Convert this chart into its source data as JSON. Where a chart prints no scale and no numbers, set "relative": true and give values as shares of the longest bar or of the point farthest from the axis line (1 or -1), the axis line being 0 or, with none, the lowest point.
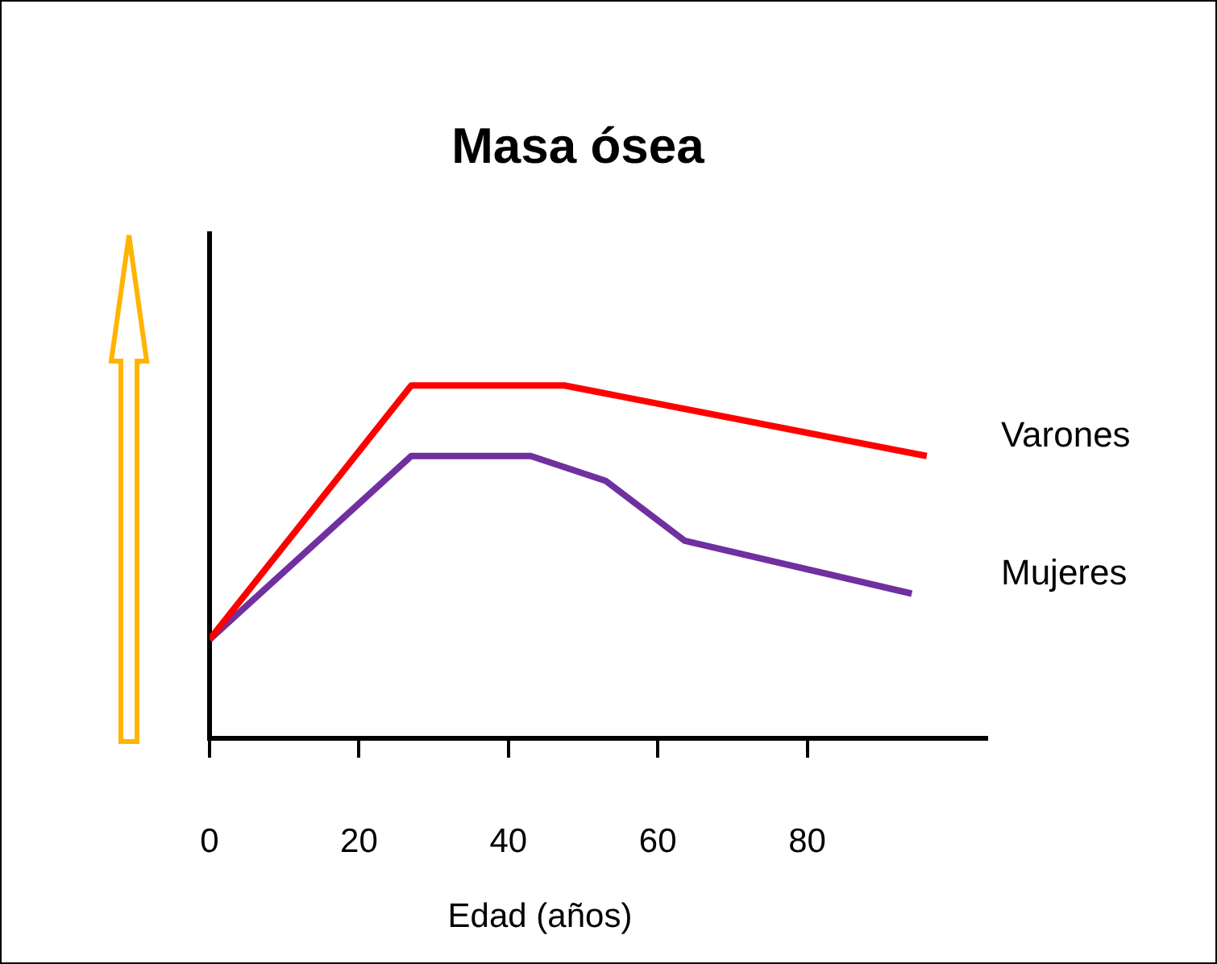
{
  "chart_data": {
    "type": "line",
    "title": "Masa ósea",
    "xlabel": "Edad (años)",
    "relative": true,
    "xlim": [
      0,
      104
    ],
    "xticks": [
      0,
      20,
      40,
      60,
      80
    ],
    "grid": false,
    "legend": false,
    "marker": "none",
    "line_style": "solid",
    "series": [
      {
        "name": "Varones",
        "color": "#ff0000",
        "x": [
          0,
          27,
          47.5,
          96
        ],
        "values": [
          0.28,
          1,
          1,
          0.8
        ]
      },
      {
        "name": "Mujeres",
        "color": "#7030a0",
        "x": [
          0,
          27,
          43,
          53,
          63.6,
          94
        ],
        "values": [
          0.28,
          0.8,
          0.8,
          0.73,
          0.56,
          0.41
        ]
      }
    ]
  }
}
